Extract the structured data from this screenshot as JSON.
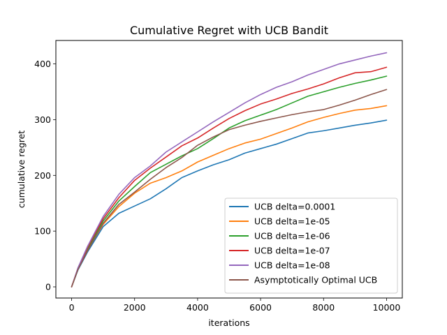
{
  "chart_data": {
    "type": "line",
    "title": "Cumulative Regret with UCB Bandit",
    "xlabel": "iterations",
    "ylabel": "cumulative regret",
    "xlim": [
      -500,
      10500
    ],
    "ylim": [
      -20,
      442
    ],
    "xticks": [
      0,
      2000,
      4000,
      6000,
      8000,
      10000
    ],
    "yticks": [
      0,
      100,
      200,
      300,
      400
    ],
    "grid": false,
    "legend_position": "lower-right",
    "x": [
      0,
      200,
      500,
      1000,
      1500,
      2000,
      2500,
      3000,
      3500,
      4000,
      4500,
      5000,
      5500,
      6000,
      6500,
      7000,
      7500,
      8000,
      8500,
      9000,
      9500,
      10000
    ],
    "series": [
      {
        "name": "UCB delta=0.0001",
        "color": "#1f77b4",
        "values": [
          0,
          30,
          62,
          108,
          132,
          145,
          158,
          176,
          196,
          208,
          219,
          228,
          240,
          248,
          256,
          266,
          276,
          280,
          285,
          290,
          294,
          299
        ]
      },
      {
        "name": "UCB delta=1e-05",
        "color": "#ff7f0e",
        "values": [
          0,
          32,
          66,
          112,
          144,
          168,
          186,
          196,
          208,
          224,
          236,
          248,
          258,
          265,
          275,
          285,
          296,
          304,
          311,
          317,
          320,
          325
        ]
      },
      {
        "name": "UCB delta=1e-06",
        "color": "#2ca02c",
        "values": [
          0,
          32,
          68,
          118,
          154,
          180,
          205,
          220,
          235,
          248,
          266,
          285,
          298,
          308,
          318,
          330,
          342,
          350,
          358,
          365,
          371,
          378
        ]
      },
      {
        "name": "UCB delta=1e-07",
        "color": "#d62728",
        "values": [
          0,
          33,
          70,
          122,
          160,
          191,
          213,
          233,
          253,
          267,
          285,
          302,
          316,
          328,
          337,
          347,
          355,
          364,
          375,
          384,
          386,
          394
        ]
      },
      {
        "name": "UCB delta=1e-08",
        "color": "#9467bd",
        "values": [
          0,
          34,
          72,
          126,
          166,
          196,
          217,
          242,
          260,
          278,
          296,
          313,
          330,
          345,
          358,
          368,
          380,
          390,
          400,
          407,
          414,
          420
        ]
      },
      {
        "name": "Asymptotically Optimal UCB",
        "color": "#8c564b",
        "values": [
          0,
          31,
          64,
          114,
          148,
          170,
          193,
          214,
          232,
          254,
          269,
          282,
          290,
          297,
          303,
          309,
          314,
          318,
          326,
          335,
          345,
          354
        ]
      }
    ]
  }
}
